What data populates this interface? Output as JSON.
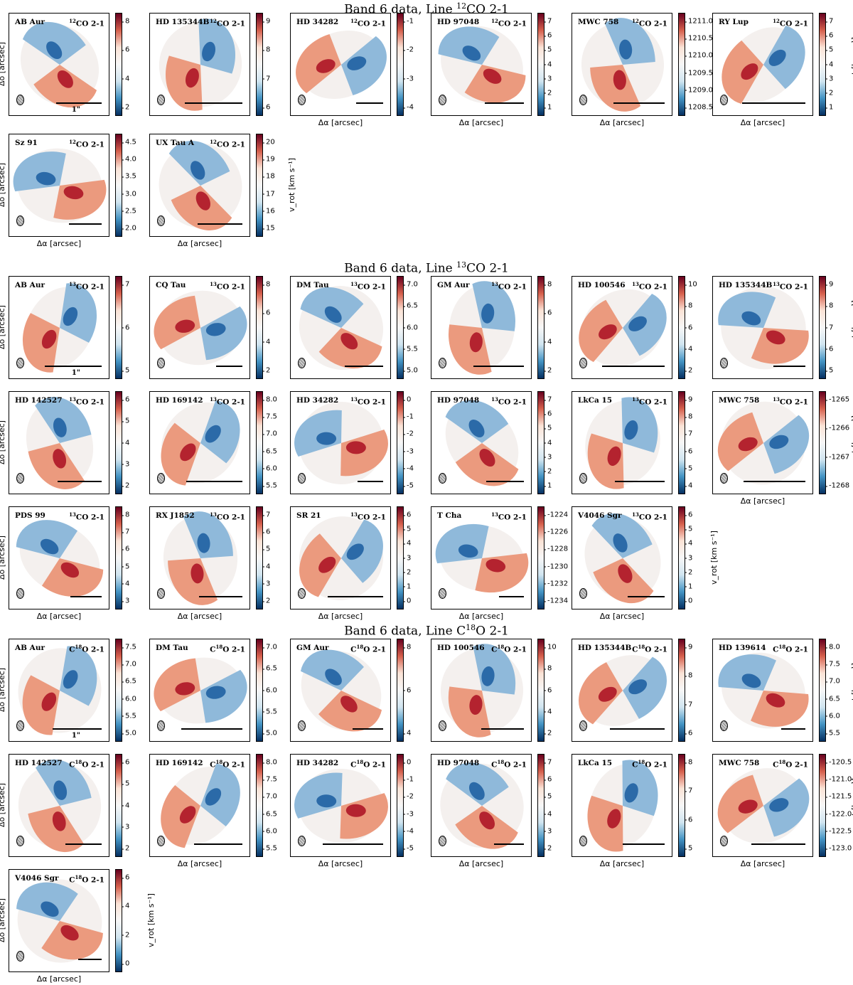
{
  "chart_data": {
    "type": "heatmap",
    "description_sections": [
      {
        "title_prefix": "Band 6 data, Line ",
        "title_sup": "12",
        "title_suffix": "CO 2-1",
        "panels": [
          {
            "source": "AB Aur",
            "line_sup": "12",
            "line": "CO 2-1",
            "ticks": [
              "8",
              "6",
              "4",
              "2"
            ],
            "scalebar_label": "1\""
          },
          {
            "source": "HD 135344B",
            "line_sup": "12",
            "line": "CO 2-1",
            "ticks": [
              "9",
              "8",
              "7",
              "6"
            ]
          },
          {
            "source": "HD 34282",
            "line_sup": "12",
            "line": "CO 2-1",
            "ticks": [
              "-1",
              "-2",
              "-3",
              "-4"
            ]
          },
          {
            "source": "HD 97048",
            "line_sup": "12",
            "line": "CO 2-1",
            "ticks": [
              "7",
              "6",
              "5",
              "4",
              "3",
              "2",
              "1"
            ]
          },
          {
            "source": "MWC 758",
            "line_sup": "12",
            "line": "CO 2-1",
            "ticks": [
              "1211.0",
              "1210.5",
              "1210.0",
              "1209.5",
              "1209.0",
              "1208.5"
            ]
          },
          {
            "source": "RY Lup",
            "line_sup": "12",
            "line": "CO 2-1",
            "ticks": [
              "7",
              "6",
              "5",
              "4",
              "3",
              "2",
              "1"
            ]
          },
          {
            "source": "Sz 91",
            "line_sup": "12",
            "line": "CO 2-1",
            "ticks": [
              "4.5",
              "4.0",
              "3.5",
              "3.0",
              "2.5",
              "2.0"
            ]
          },
          {
            "source": "UX Tau A",
            "line_sup": "12",
            "line": "CO 2-1",
            "ticks": [
              "20",
              "19",
              "18",
              "17",
              "16",
              "15"
            ]
          }
        ]
      },
      {
        "title_prefix": "Band 6 data, Line ",
        "title_sup": "13",
        "title_suffix": "CO 2-1",
        "panels": [
          {
            "source": "AB Aur",
            "line_sup": "13",
            "line": "CO 2-1",
            "ticks": [
              "7",
              "6",
              "5"
            ],
            "scalebar_label": "1\""
          },
          {
            "source": "CQ Tau",
            "line_sup": "13",
            "line": "CO 2-1",
            "ticks": [
              "8",
              "6",
              "4",
              "2"
            ]
          },
          {
            "source": "DM Tau",
            "line_sup": "13",
            "line": "CO 2-1",
            "ticks": [
              "7.0",
              "6.5",
              "6.0",
              "5.5",
              "5.0"
            ]
          },
          {
            "source": "GM Aur",
            "line_sup": "13",
            "line": "CO 2-1",
            "ticks": [
              "8",
              "6",
              "4",
              "2"
            ]
          },
          {
            "source": "HD 100546",
            "line_sup": "13",
            "line": "CO 2-1",
            "ticks": [
              "10",
              "8",
              "6",
              "4",
              "2"
            ]
          },
          {
            "source": "HD 135344B",
            "line_sup": "13",
            "line": "CO 2-1",
            "ticks": [
              "9",
              "8",
              "7",
              "6",
              "5"
            ]
          },
          {
            "source": "HD 142527",
            "line_sup": "13",
            "line": "CO 2-1",
            "ticks": [
              "6",
              "5",
              "4",
              "3",
              "2"
            ]
          },
          {
            "source": "HD 169142",
            "line_sup": "13",
            "line": "CO 2-1",
            "ticks": [
              "8.0",
              "7.5",
              "7.0",
              "6.5",
              "6.0",
              "5.5"
            ]
          },
          {
            "source": "HD 34282",
            "line_sup": "13",
            "line": "CO 2-1",
            "ticks": [
              "0",
              "-1",
              "-2",
              "-3",
              "-4",
              "-5"
            ]
          },
          {
            "source": "HD 97048",
            "line_sup": "13",
            "line": "CO 2-1",
            "ticks": [
              "7",
              "6",
              "5",
              "4",
              "3",
              "2",
              "1"
            ]
          },
          {
            "source": "LkCa 15",
            "line_sup": "13",
            "line": "CO 2-1",
            "ticks": [
              "9",
              "8",
              "7",
              "6",
              "5",
              "4"
            ]
          },
          {
            "source": "MWC 758",
            "line_sup": "13",
            "line": "CO 2-1",
            "ticks": [
              "-1265",
              "-1266",
              "-1267",
              "-1268"
            ]
          },
          {
            "source": "PDS 99",
            "line_sup": "13",
            "line": "CO 2-1",
            "ticks": [
              "8",
              "7",
              "6",
              "5",
              "4",
              "3"
            ]
          },
          {
            "source": "RX J1852",
            "line_sup": "13",
            "line": "CO 2-1",
            "ticks": [
              "7",
              "6",
              "5",
              "4",
              "3",
              "2"
            ]
          },
          {
            "source": "SR 21",
            "line_sup": "13",
            "line": "CO 2-1",
            "ticks": [
              "6",
              "5",
              "4",
              "3",
              "2",
              "1",
              "0"
            ]
          },
          {
            "source": "T Cha",
            "line_sup": "13",
            "line": "CO 2-1",
            "ticks": [
              "-1224",
              "-1226",
              "-1228",
              "-1230",
              "-1232",
              "-1234"
            ]
          },
          {
            "source": "V4046 Sgr",
            "line_sup": "13",
            "line": "CO 2-1",
            "ticks": [
              "6",
              "5",
              "4",
              "3",
              "2",
              "1",
              "0"
            ]
          }
        ]
      },
      {
        "title_prefix": "Band 6 data, Line C",
        "title_sup": "18",
        "title_suffix": "O 2-1",
        "panels": [
          {
            "source": "AB Aur",
            "line_pre": "C",
            "line_sup": "18",
            "line": "O 2-1",
            "ticks": [
              "7.5",
              "7.0",
              "6.5",
              "6.0",
              "5.5",
              "5.0"
            ],
            "scalebar_label": "1\""
          },
          {
            "source": "DM Tau",
            "line_pre": "C",
            "line_sup": "18",
            "line": "O 2-1",
            "ticks": [
              "7.0",
              "6.5",
              "6.0",
              "5.5",
              "5.0"
            ]
          },
          {
            "source": "GM Aur",
            "line_pre": "C",
            "line_sup": "18",
            "line": "O 2-1",
            "ticks": [
              "8",
              "6",
              "4"
            ]
          },
          {
            "source": "HD 100546",
            "line_pre": "C",
            "line_sup": "18",
            "line": "O 2-1",
            "ticks": [
              "10",
              "8",
              "6",
              "4",
              "2"
            ]
          },
          {
            "source": "HD 135344B",
            "line_pre": "C",
            "line_sup": "18",
            "line": "O 2-1",
            "ticks": [
              "9",
              "8",
              "7",
              "6"
            ]
          },
          {
            "source": "HD 139614",
            "line_pre": "C",
            "line_sup": "18",
            "line": "O 2-1",
            "ticks": [
              "8.0",
              "7.5",
              "7.0",
              "6.5",
              "6.0",
              "5.5"
            ]
          },
          {
            "source": "HD 142527",
            "line_pre": "C",
            "line_sup": "18",
            "line": "O 2-1",
            "ticks": [
              "6",
              "5",
              "4",
              "3",
              "2"
            ]
          },
          {
            "source": "HD 169142",
            "line_pre": "C",
            "line_sup": "18",
            "line": "O 2-1",
            "ticks": [
              "8.0",
              "7.5",
              "7.0",
              "6.5",
              "6.0",
              "5.5"
            ]
          },
          {
            "source": "HD 34282",
            "line_pre": "C",
            "line_sup": "18",
            "line": "O 2-1",
            "ticks": [
              "0",
              "-1",
              "-2",
              "-3",
              "-4",
              "-5"
            ]
          },
          {
            "source": "HD 97048",
            "line_pre": "C",
            "line_sup": "18",
            "line": "O 2-1",
            "ticks": [
              "7",
              "6",
              "5",
              "4",
              "3",
              "2"
            ]
          },
          {
            "source": "LkCa 15",
            "line_pre": "C",
            "line_sup": "18",
            "line": "O 2-1",
            "ticks": [
              "8",
              "7",
              "6",
              "5"
            ]
          },
          {
            "source": "MWC 758",
            "line_pre": "C",
            "line_sup": "18",
            "line": "O 2-1",
            "ticks": [
              "-120.5",
              "-121.0",
              "-121.5",
              "-122.0",
              "-122.5",
              "-123.0"
            ]
          },
          {
            "source": "V4046 Sgr",
            "line_pre": "C",
            "line_sup": "18",
            "line": "O 2-1",
            "ticks": [
              "6",
              "4",
              "2",
              "0"
            ]
          }
        ]
      }
    ],
    "xlabel": "Δα [arcsec]",
    "ylabel": "Δδ [arcsec]",
    "colorbar_label": "v_rot [km s⁻¹]",
    "colormap": "RdBu_r"
  }
}
